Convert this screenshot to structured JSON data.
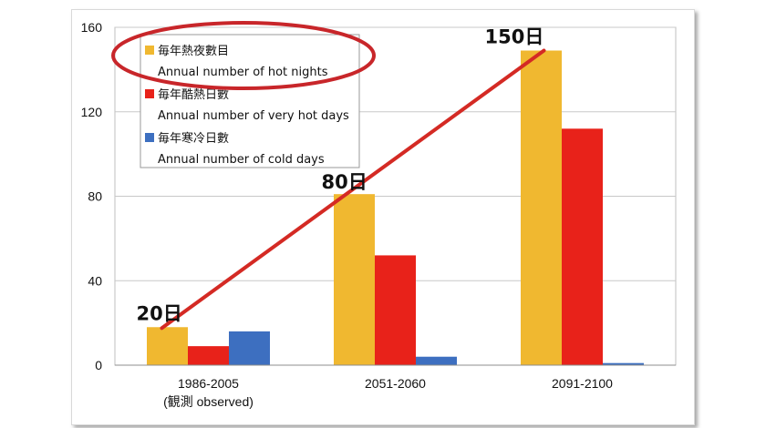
{
  "chart_data": {
    "type": "bar",
    "categories": [
      "1986-2005",
      "2051-2060",
      "2091-2100"
    ],
    "category_sublabels": [
      "(観測 observed)",
      "",
      ""
    ],
    "series": [
      {
        "name_ja": "毎年熱夜數目",
        "name_en": "Annual number of hot nights",
        "color": "#f0b830",
        "values": [
          18,
          81,
          149
        ]
      },
      {
        "name_ja": "毎年酷熱日數",
        "name_en": "Annual number of very hot days",
        "color": "#e8221a",
        "values": [
          9,
          52,
          112
        ]
      },
      {
        "name_ja": "毎年寒冷日數",
        "name_en": "Annual number of cold days",
        "color": "#3d6fc0",
        "values": [
          16,
          4,
          1
        ]
      }
    ],
    "ylim": [
      0,
      160
    ],
    "yticks": [
      0,
      40,
      80,
      120,
      160
    ],
    "grid": true,
    "legend": "top-left",
    "annotations": [
      {
        "text": "20日",
        "category": 0,
        "value": 18
      },
      {
        "text": "80日",
        "category": 1,
        "value": 81
      },
      {
        "text": "150日",
        "category": 2,
        "value": 149
      }
    ],
    "trend_line": {
      "color": "#d42a24",
      "series": 0
    },
    "highlight": {
      "shape": "ellipse",
      "color": "#c8262a",
      "target": "legend-entry-0"
    }
  }
}
